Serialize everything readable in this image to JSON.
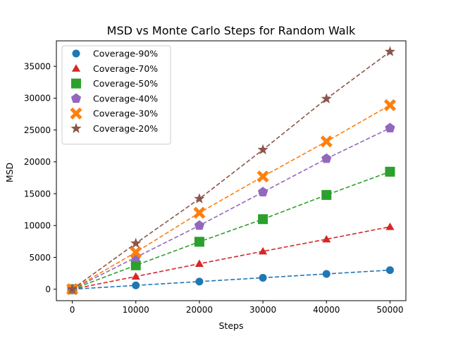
{
  "chart_data": {
    "type": "line",
    "title": "MSD vs Monte Carlo Steps for Random Walk",
    "xlabel": "Steps",
    "ylabel": "MSD",
    "x": [
      0,
      10000,
      20000,
      30000,
      40000,
      50000
    ],
    "xlim": [
      -2500,
      52500
    ],
    "ylim": [
      -1800,
      39000
    ],
    "xticks": [
      0,
      10000,
      20000,
      30000,
      40000,
      50000
    ],
    "yticks": [
      0,
      5000,
      10000,
      15000,
      20000,
      25000,
      30000,
      35000
    ],
    "grid": false,
    "legend_position": "upper-left",
    "line_style": "dashed",
    "series": [
      {
        "name": "Coverage-90%",
        "marker": "circle",
        "color": "#1f77b4",
        "values": [
          0,
          600,
          1200,
          1800,
          2400,
          3000
        ]
      },
      {
        "name": "Coverage-70%",
        "marker": "triangle",
        "color": "#d62728",
        "values": [
          0,
          2000,
          4000,
          5950,
          7850,
          9800
        ]
      },
      {
        "name": "Coverage-50%",
        "marker": "square",
        "color": "#2ca02c",
        "values": [
          0,
          3750,
          7450,
          11000,
          14800,
          18450
        ]
      },
      {
        "name": "Coverage-40%",
        "marker": "pentagon",
        "color": "#9467bd",
        "values": [
          0,
          5000,
          10000,
          15250,
          20500,
          25300
        ]
      },
      {
        "name": "Coverage-30%",
        "marker": "x-filled",
        "color": "#ff7f0e",
        "values": [
          0,
          5800,
          12000,
          17700,
          23200,
          28900
        ]
      },
      {
        "name": "Coverage-20%",
        "marker": "star",
        "color": "#8c564b",
        "values": [
          0,
          7200,
          14200,
          21900,
          29900,
          37300
        ]
      }
    ]
  }
}
